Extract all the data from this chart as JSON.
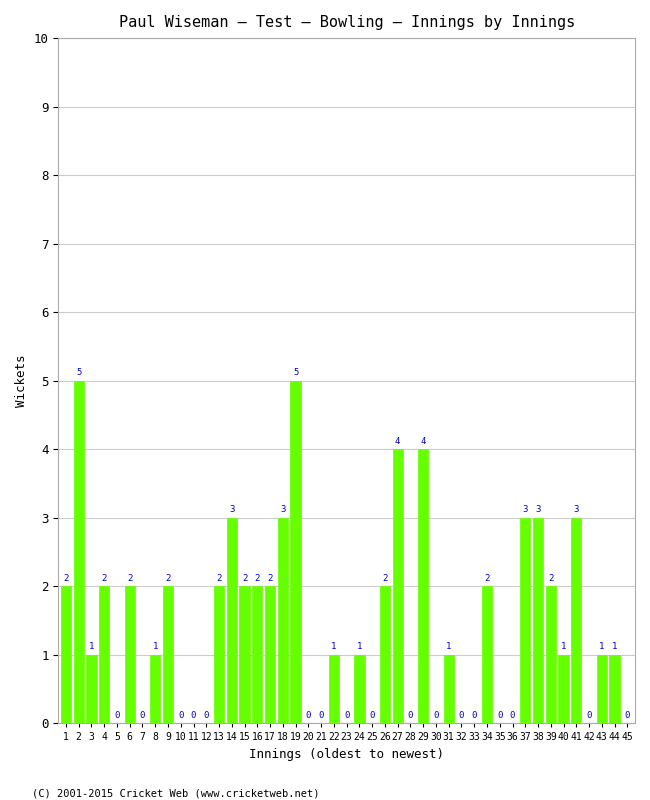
{
  "title": "Paul Wiseman – Test – Bowling – Innings by Innings",
  "xlabel": "Innings (oldest to newest)",
  "ylabel": "Wickets",
  "ylim": [
    0,
    10
  ],
  "yticks": [
    0,
    1,
    2,
    3,
    4,
    5,
    6,
    7,
    8,
    9,
    10
  ],
  "bar_color": "#66ff00",
  "label_color": "#0000cc",
  "background_color": "#ffffff",
  "grid_color": "#cccccc",
  "footer": "(C) 2001-2015 Cricket Web (www.cricketweb.net)",
  "innings": [
    1,
    2,
    3,
    4,
    5,
    6,
    7,
    8,
    9,
    10,
    11,
    12,
    13,
    14,
    15,
    16,
    17,
    18,
    19,
    20,
    21,
    22,
    23,
    24,
    25,
    26,
    27,
    28,
    29,
    30,
    31,
    32,
    33,
    34,
    35,
    36,
    37,
    38,
    39,
    40,
    41,
    42,
    43,
    44,
    45
  ],
  "wickets": [
    2,
    5,
    1,
    2,
    0,
    2,
    0,
    1,
    2,
    0,
    0,
    0,
    2,
    3,
    2,
    2,
    2,
    3,
    5,
    0,
    0,
    1,
    0,
    1,
    0,
    2,
    4,
    0,
    4,
    0,
    1,
    0,
    0,
    2,
    0,
    0,
    3,
    3,
    2,
    1,
    3,
    0,
    1,
    1,
    0
  ]
}
